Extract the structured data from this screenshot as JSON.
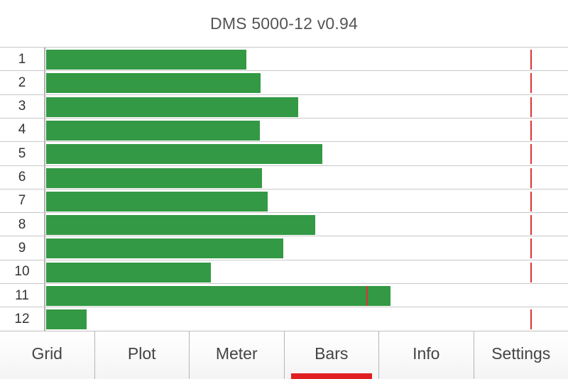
{
  "header": {
    "title": "DMS 5000-12 v0.94"
  },
  "colors": {
    "bar": "#339944",
    "marker": "#dd3333",
    "tab_active": "#e02020"
  },
  "chart_data": {
    "type": "bar",
    "orientation": "horizontal",
    "categories": [
      "1",
      "2",
      "3",
      "4",
      "5",
      "6",
      "7",
      "8",
      "9",
      "10",
      "11",
      "12"
    ],
    "values": [
      0.383,
      0.411,
      0.483,
      0.409,
      0.529,
      0.414,
      0.425,
      0.515,
      0.455,
      0.315,
      0.66,
      0.078
    ],
    "markers": [
      0.928,
      0.928,
      0.928,
      0.928,
      0.928,
      0.928,
      0.928,
      0.928,
      0.928,
      0.928,
      0.613,
      0.928
    ],
    "xlim": [
      0,
      1
    ],
    "title": "",
    "xlabel": "",
    "ylabel": ""
  },
  "tabs": [
    {
      "label": "Grid",
      "active": false
    },
    {
      "label": "Plot",
      "active": false
    },
    {
      "label": "Meter",
      "active": false
    },
    {
      "label": "Bars",
      "active": true
    },
    {
      "label": "Info",
      "active": false
    },
    {
      "label": "Settings",
      "active": false
    }
  ]
}
